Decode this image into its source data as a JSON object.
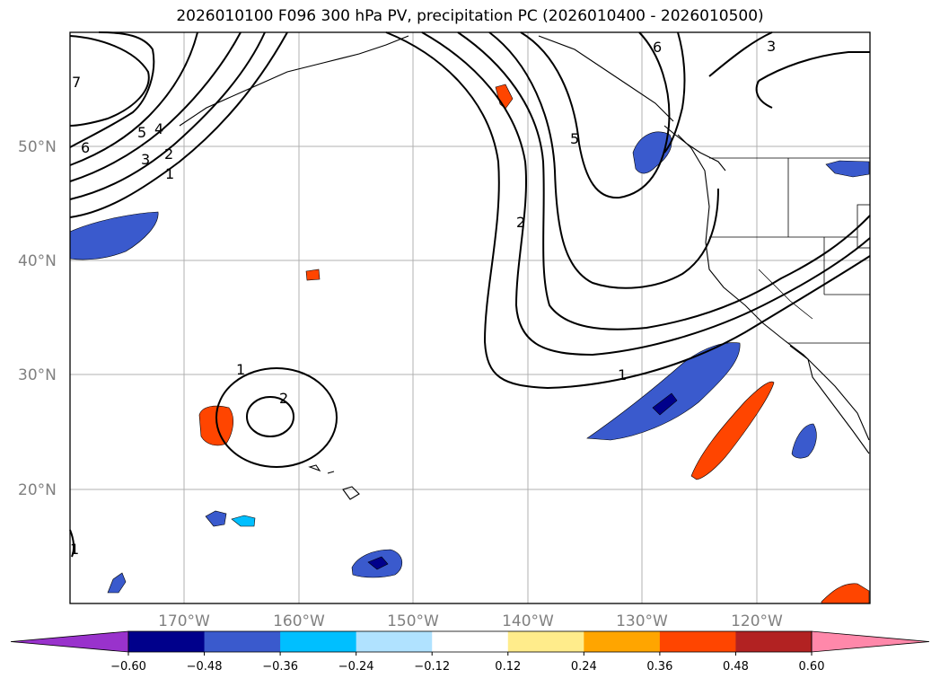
{
  "title": "2026010100 F096 300 hPa PV, precipitation PC (2026010400 - 2026010500)",
  "lat_labels": [
    "50°N",
    "40°N",
    "30°N",
    "20°N"
  ],
  "lon_labels": [
    "170°W",
    "160°W",
    "150°W",
    "140°W",
    "130°W",
    "120°W"
  ],
  "colorbar": {
    "ticks": [
      "−0.60",
      "−0.48",
      "−0.36",
      "−0.24",
      "−0.12",
      "0.12",
      "0.24",
      "0.36",
      "0.48",
      "0.60"
    ],
    "colors": [
      "#9932cc",
      "#00008b",
      "#3a5acd",
      "#00bfff",
      "#b0e2ff",
      "#ffffff",
      "#ffec8b",
      "#ffa500",
      "#ff4500",
      "#b22222",
      "#ff88aa"
    ]
  },
  "contour_labels": {
    "c_7": "7",
    "c_6a": "6",
    "c_5": "5",
    "c_4": "4",
    "c_3a": "3",
    "c_2a": "2",
    "c_1a": "1",
    "c_2b": "2",
    "c_5b": "5",
    "c_6b": "6",
    "c_3b": "3",
    "c_1b": "1",
    "c_1c": "1",
    "c_2c": "2",
    "c_1d": "1"
  }
}
